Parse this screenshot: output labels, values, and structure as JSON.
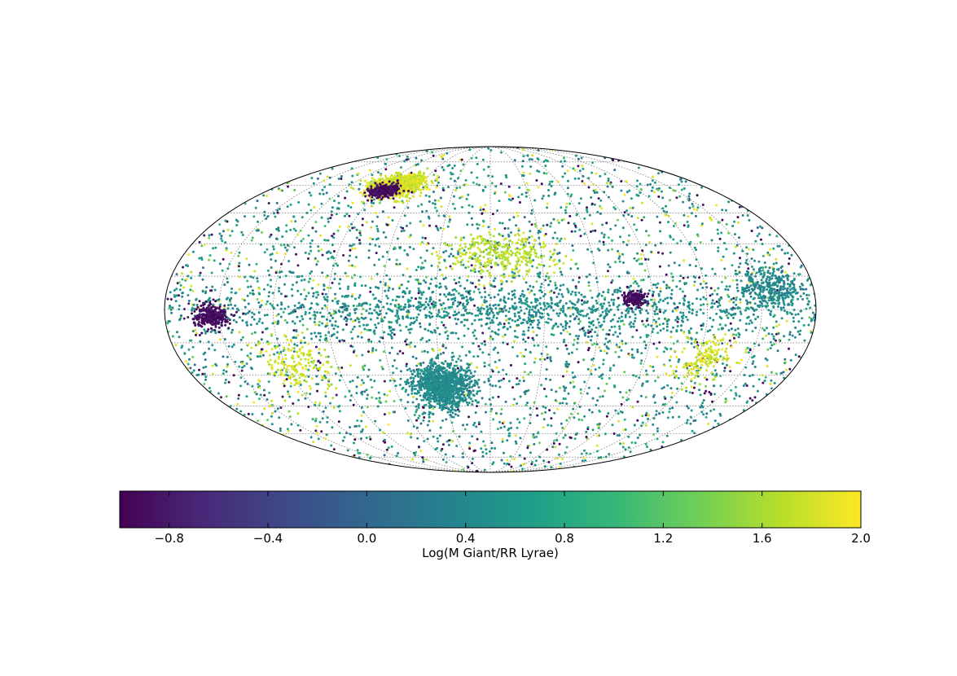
{
  "chart_data": {
    "type": "scatter",
    "projection": "mollweide",
    "title": "",
    "grid": true,
    "grid_style": "dotted",
    "point_color_scale": "viridis",
    "colorbar": {
      "label": "Log(M Giant/RR Lyrae)",
      "orientation": "horizontal",
      "placement": "bottom",
      "range": [
        -1.0,
        2.0
      ],
      "ticks": [
        -0.8,
        -0.4,
        0.0,
        0.4,
        0.8,
        1.2,
        1.6,
        2.0
      ],
      "tick_labels": [
        "−0.8",
        "−0.4",
        "0.0",
        "0.4",
        "0.8",
        "1.2",
        "1.6",
        "2.0"
      ],
      "colors": [
        "#440154",
        "#482878",
        "#3e4989",
        "#31688e",
        "#26828e",
        "#1f9e89",
        "#35b779",
        "#6ece58",
        "#b5de2b",
        "#fde725"
      ]
    },
    "longitude_grid_deg": [
      -150,
      -120,
      -90,
      -60,
      -30,
      0,
      30,
      60,
      90,
      120,
      150
    ],
    "latitude_grid_deg": [
      -75,
      -60,
      -45,
      -30,
      -15,
      0,
      15,
      30,
      45,
      60,
      75
    ],
    "features": [
      {
        "lon": -30,
        "lat": -35,
        "spread_lon": 14,
        "spread_lat": 9,
        "value": 0.45,
        "density": "high"
      },
      {
        "lon": -80,
        "lat": 60,
        "spread_lon": 18,
        "spread_lat": 5,
        "value": 1.8,
        "density": "high"
      },
      {
        "lon": -85,
        "lat": 57,
        "spread_lon": 10,
        "spread_lat": 3,
        "value": -0.9,
        "density": "medium"
      },
      {
        "lon": 5,
        "lat": 25,
        "spread_lon": 25,
        "spread_lat": 8,
        "value": 1.7,
        "density": "medium"
      },
      {
        "lon": 10,
        "lat": 0,
        "spread_lon": 140,
        "spread_lat": 10,
        "value": 0.5,
        "density": "high"
      },
      {
        "lon": -155,
        "lat": -3,
        "spread_lon": 8,
        "spread_lat": 4,
        "value": -0.9,
        "density": "medium"
      },
      {
        "lon": 80,
        "lat": 5,
        "spread_lon": 5,
        "spread_lat": 3,
        "value": -0.9,
        "density": "low"
      },
      {
        "lon": 155,
        "lat": 10,
        "spread_lon": 14,
        "spread_lat": 8,
        "value": 0.4,
        "density": "medium"
      },
      {
        "lon": -115,
        "lat": -25,
        "spread_lon": 18,
        "spread_lat": 10,
        "value": 1.8,
        "density": "low"
      },
      {
        "lon": 125,
        "lat": -22,
        "spread_lon": 14,
        "spread_lat": 8,
        "value": 1.8,
        "density": "low"
      }
    ]
  }
}
